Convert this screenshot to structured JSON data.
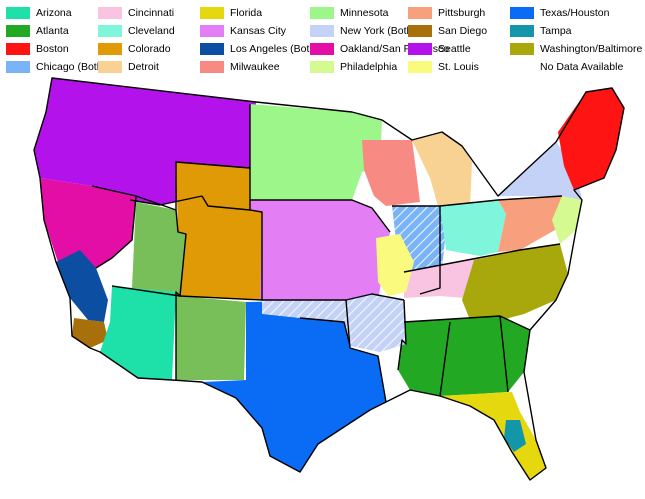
{
  "legend": [
    {
      "label": "Arizona",
      "color": "#1de1a8"
    },
    {
      "label": "Atlanta",
      "color": "#22a822"
    },
    {
      "label": "Boston",
      "color": "#ff1414"
    },
    {
      "label": "Chicago (Both)",
      "color": "#7ab4f8"
    },
    {
      "label": "Cincinnati",
      "color": "#f8c4e2"
    },
    {
      "label": "Cleveland",
      "color": "#7ff6dc"
    },
    {
      "label": "Colorado",
      "color": "#e09a06"
    },
    {
      "label": "Detroit",
      "color": "#f8d292"
    },
    {
      "label": "Florida",
      "color": "#e6d80e"
    },
    {
      "label": "Kansas City",
      "color": "#e47ef4"
    },
    {
      "label": "Los Angeles (Both)",
      "color": "#0c4ea2"
    },
    {
      "label": "Milwaukee",
      "color": "#f88a84"
    },
    {
      "label": "Minnesota",
      "color": "#9cf68a"
    },
    {
      "label": "New York (Both)",
      "color": "#c4d2f8"
    },
    {
      "label": "Oakland/San Francisco",
      "color": "#e20ea6"
    },
    {
      "label": "Philadelphia",
      "color": "#d6fa92"
    },
    {
      "label": "Pittsburgh",
      "color": "#f8a07e"
    },
    {
      "label": "San Diego",
      "color": "#a8700a"
    },
    {
      "label": "Seattle",
      "color": "#b412ea"
    },
    {
      "label": "St. Louis",
      "color": "#fafa7e"
    },
    {
      "label": "Texas/Houston",
      "color": "#0a6cf4"
    },
    {
      "label": "Tampa",
      "color": "#1496aa"
    },
    {
      "label": "Washington/Baltimore",
      "color": "#a8a80c"
    },
    {
      "label": "No Data Available",
      "color": "#ffffff"
    }
  ],
  "map": {
    "regions": [
      {
        "name": "seattle-region",
        "color": "#b412ea",
        "hatch": false
      },
      {
        "name": "oakland-sf-region",
        "color": "#e20ea6",
        "hatch": false
      },
      {
        "name": "los-angeles-region",
        "color": "#0c4ea2",
        "hatch": false
      },
      {
        "name": "san-diego-region",
        "color": "#a8700a",
        "hatch": false
      },
      {
        "name": "arizona-region",
        "color": "#1de1a8",
        "hatch": false
      },
      {
        "name": "utah-nm-atlanta-region",
        "color": "#78bf5a",
        "hatch": false
      },
      {
        "name": "colorado-region",
        "color": "#e09a06",
        "hatch": false
      },
      {
        "name": "minnesota-region",
        "color": "#9cf68a",
        "hatch": false
      },
      {
        "name": "kansas-city-region",
        "color": "#e47ef4",
        "hatch": false
      },
      {
        "name": "texas-houston-region",
        "color": "#0a6cf4",
        "hatch": false
      },
      {
        "name": "milwaukee-region",
        "color": "#f88a84",
        "hatch": false
      },
      {
        "name": "detroit-region",
        "color": "#f8d292",
        "hatch": false
      },
      {
        "name": "chicago-region",
        "color": "#7ab4f8",
        "hatch": true
      },
      {
        "name": "cincinnati-region",
        "color": "#f8c4e2",
        "hatch": false
      },
      {
        "name": "cleveland-region",
        "color": "#7ff6dc",
        "hatch": false
      },
      {
        "name": "pittsburgh-region",
        "color": "#f8a07e",
        "hatch": false
      },
      {
        "name": "new-york-region",
        "color": "#c4d2f8",
        "hatch": false
      },
      {
        "name": "boston-region",
        "color": "#ff1414",
        "hatch": false
      },
      {
        "name": "philadelphia-region",
        "color": "#d6fa92",
        "hatch": false
      },
      {
        "name": "washington-baltimore-region",
        "color": "#a8a80c",
        "hatch": false
      },
      {
        "name": "atlanta-region",
        "color": "#22a822",
        "hatch": false
      },
      {
        "name": "florida-region",
        "color": "#e6d80e",
        "hatch": false
      },
      {
        "name": "tampa-region",
        "color": "#1496aa",
        "hatch": false
      },
      {
        "name": "st-louis-region",
        "color": "#fafa7e",
        "hatch": false
      },
      {
        "name": "oklahoma-arkansas-region",
        "color": "#c4d2f8",
        "hatch": true
      }
    ]
  }
}
